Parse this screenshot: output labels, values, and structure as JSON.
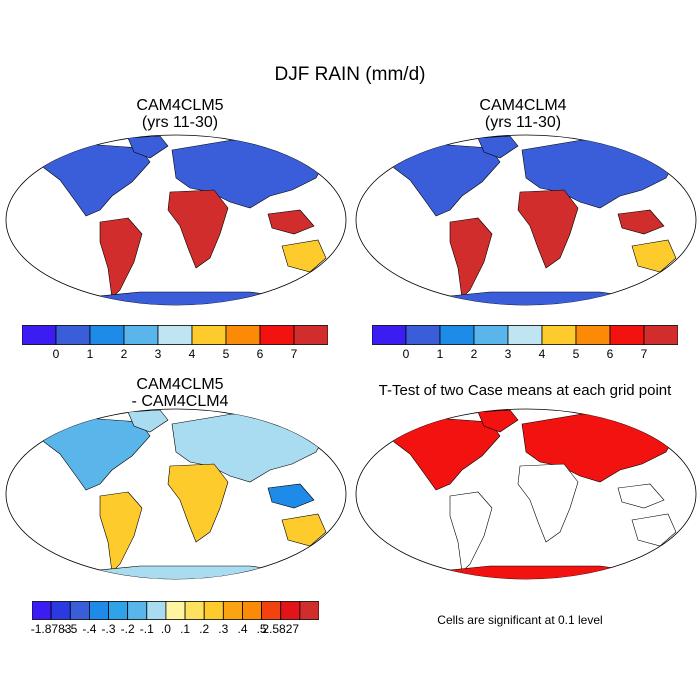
{
  "figure": {
    "title": "DJF RAIN (mm/d)",
    "note": "Cells are significant at 0.1 level"
  },
  "panels": [
    {
      "id": "p1",
      "title1": "CAM4CLM5",
      "title2": "(yrs 11-30)",
      "field": "rain"
    },
    {
      "id": "p2",
      "title1": "CAM4CLM4",
      "title2": "(yrs 11-30)",
      "field": "rain"
    },
    {
      "id": "p3",
      "title1": "CAM4CLM5",
      "title2": "- CAM4CLM4",
      "field": "diff"
    },
    {
      "id": "p4",
      "title1": "T-Test of two Case means at each grid point",
      "title2": "",
      "field": "ttest"
    }
  ],
  "colorbars": {
    "rain": {
      "colors": [
        "#3b1cf2",
        "#3a5ed9",
        "#1e8be8",
        "#5ab6ea",
        "#bfe5f3",
        "#fecb2d",
        "#fb8a07",
        "#f21210",
        "#d02d2c"
      ],
      "labels": [
        "0",
        "1",
        "2",
        "3",
        "4",
        "5",
        "6",
        "7"
      ]
    },
    "diff": {
      "colors": [
        "#3b1cf2",
        "#2a3ae0",
        "#3a5ed9",
        "#1e8be8",
        "#2ea3e8",
        "#5ab6ea",
        "#a9dcf0",
        "#fff5a0",
        "#fee25f",
        "#fecb2d",
        "#fba413",
        "#fb8a07",
        "#f2420e",
        "#e2141a",
        "#d02d2c"
      ],
      "labels": [
        "-1.8783",
        "-.5",
        "-.4",
        "-.3",
        "-.2",
        "-.1",
        ".0",
        ".1",
        ".2",
        ".3",
        ".4",
        ".5",
        "2.5827"
      ]
    }
  },
  "map_colors": {
    "land_dry": "#3a5ed9",
    "land_wet_mid": "#5ab6ea",
    "land_wet": "#fecb2d",
    "land_very_wet": "#d02d2c",
    "diff_base": "#a9dcf0",
    "diff_pos": "#fecb2d",
    "diff_neg": "#1e8be8",
    "ttest_sig": "#f21210"
  }
}
